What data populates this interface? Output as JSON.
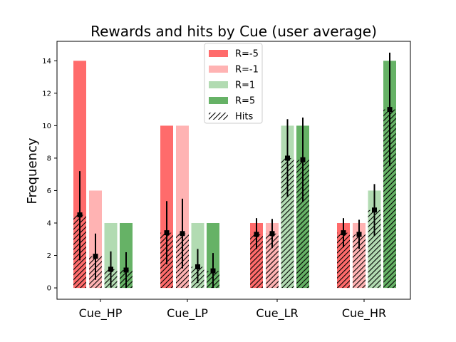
{
  "chart_data": {
    "type": "bar",
    "title": "Rewards and hits by Cue (user average)",
    "xlabel": "",
    "ylabel": "Frequency",
    "categories": [
      "Cue_HP",
      "Cue_LP",
      "Cue_LR",
      "Cue_HR"
    ],
    "ylim": [
      -0.7,
      15.2
    ],
    "yticks": [
      0,
      2,
      4,
      6,
      8,
      10,
      12,
      14
    ],
    "legend_position": "top-center",
    "series": [
      {
        "name": "R=-5",
        "color": "#ff6b6b",
        "values": [
          14,
          10,
          4,
          4
        ]
      },
      {
        "name": "R=-1",
        "color": "#ffb3b3",
        "values": [
          6,
          10,
          4,
          4
        ]
      },
      {
        "name": "R=1",
        "color": "#b2dbb2",
        "values": [
          4,
          4,
          10,
          6
        ]
      },
      {
        "name": "R=5",
        "color": "#66b266",
        "values": [
          4,
          4,
          10,
          14
        ]
      }
    ],
    "hits": {
      "name": "Hits",
      "values": [
        [
          4.5,
          1.95,
          1.15,
          1.1
        ],
        [
          3.4,
          3.35,
          1.3,
          1.05
        ],
        [
          3.3,
          3.35,
          8.0,
          7.9
        ],
        [
          3.4,
          3.3,
          4.8,
          11.0
        ]
      ],
      "error_low": [
        [
          1.7,
          0.5,
          0.05,
          0.0
        ],
        [
          1.45,
          1.2,
          0.3,
          0.0
        ],
        [
          2.4,
          2.45,
          5.6,
          5.3
        ],
        [
          2.5,
          2.4,
          3.2,
          7.5
        ]
      ],
      "error_high": [
        [
          7.2,
          3.35,
          2.25,
          2.2
        ],
        [
          5.35,
          5.5,
          2.4,
          2.15
        ],
        [
          4.3,
          4.25,
          10.4,
          10.5
        ],
        [
          4.3,
          4.2,
          6.4,
          14.5
        ]
      ]
    }
  }
}
